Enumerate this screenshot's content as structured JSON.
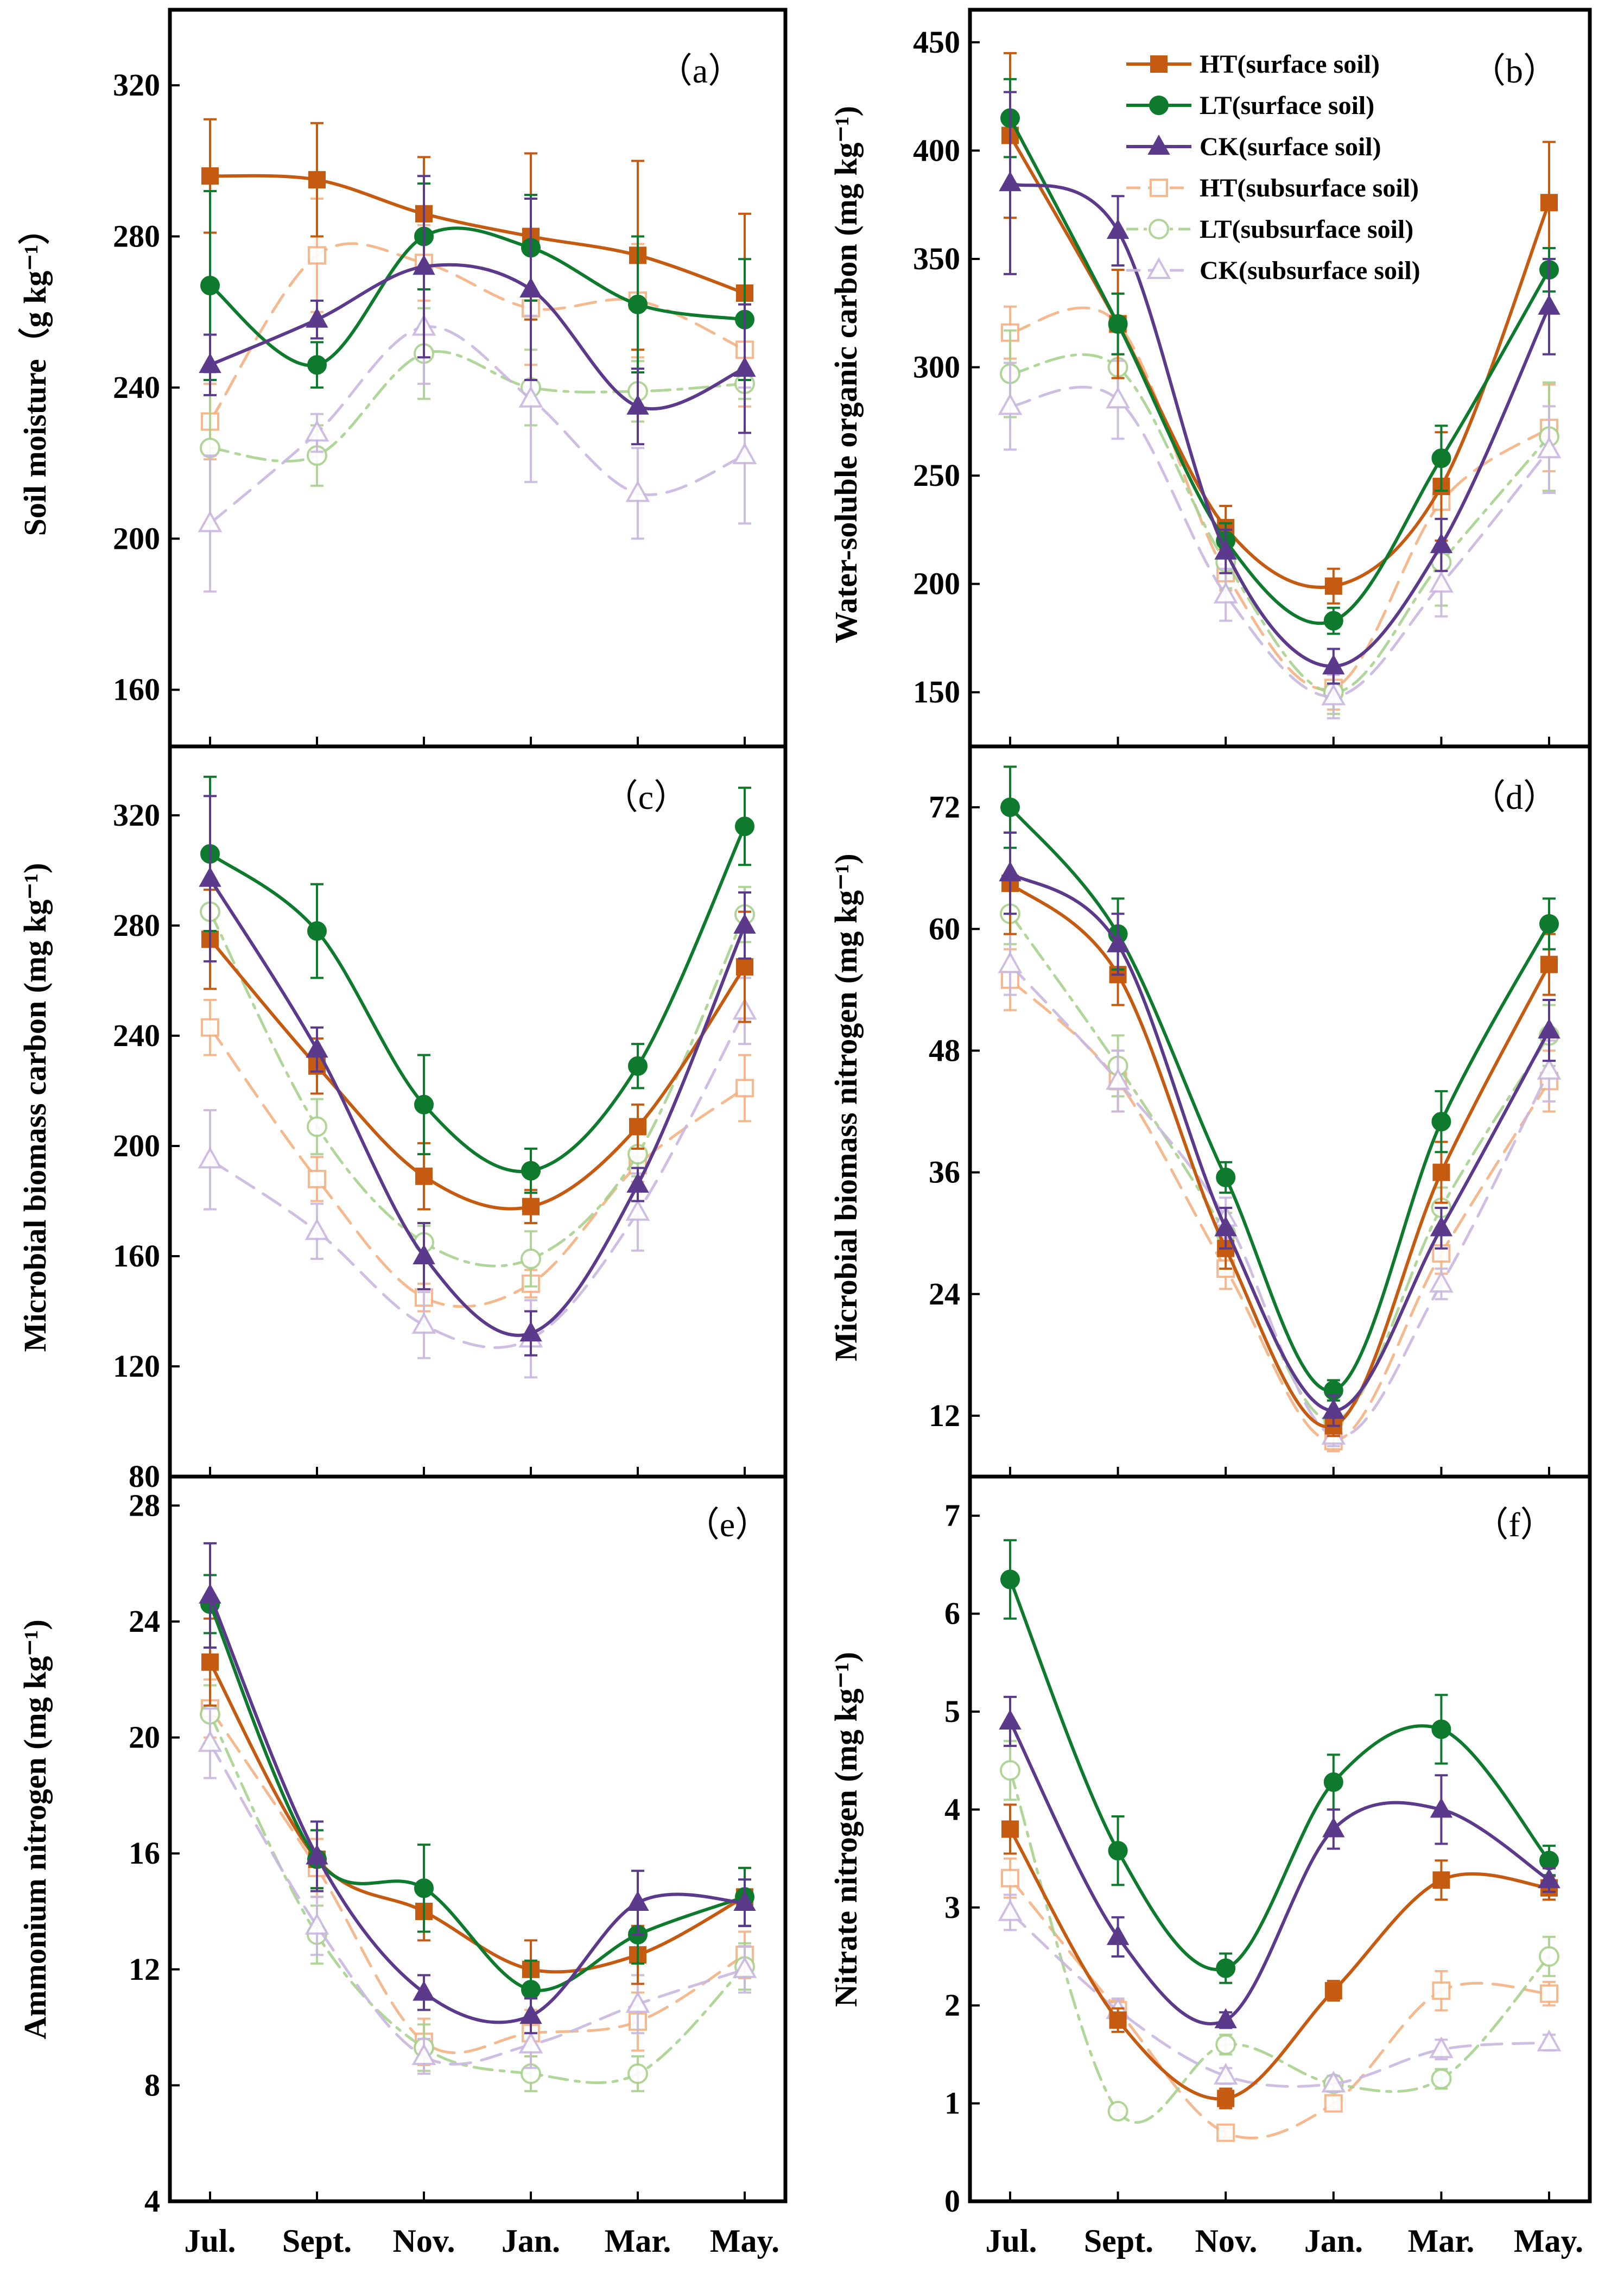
{
  "chart_data": {
    "type": "line",
    "categories": [
      "Jul.",
      "Sept.",
      "Nov.",
      "Jan.",
      "Mar.",
      "May."
    ],
    "series_styles": [
      {
        "name": "HT(surface soil)",
        "color": "#C55A11",
        "marker": "square",
        "filled": true,
        "dash": "solid",
        "opacity": 1
      },
      {
        "name": "LT(surface soil)",
        "color": "#0E7A2D",
        "marker": "circle",
        "filled": true,
        "dash": "solid",
        "opacity": 1
      },
      {
        "name": "CK(surface soil)",
        "color": "#5B3A8C",
        "marker": "triangle",
        "filled": true,
        "dash": "solid",
        "opacity": 1
      },
      {
        "name": "HT(subsurface soil)",
        "color": "#F4B183",
        "marker": "square",
        "filled": false,
        "dash": "dash",
        "opacity": 0.9
      },
      {
        "name": "LT(subsurface soil)",
        "color": "#A9D18E",
        "marker": "circle",
        "filled": false,
        "dash": "dashdot",
        "opacity": 0.9
      },
      {
        "name": "CK(subsurface soil)",
        "color": "#C9B8DF",
        "marker": "triangle",
        "filled": false,
        "dash": "dash",
        "opacity": 0.9
      }
    ],
    "legend": {
      "placement": "top-right of panel (b)",
      "entries": [
        "HT(surface soil)",
        "LT(surface soil)",
        "CK(surface soil)",
        "HT(subsurface soil)",
        "LT(subsurface soil)",
        "CK(subsurface soil)"
      ]
    },
    "panels": [
      {
        "tag": "（a）",
        "ylabel": "Soil moisture（g kg⁻¹）",
        "ylim": [
          145,
          340
        ],
        "yticks": [
          160,
          200,
          240,
          280,
          320
        ],
        "series": [
          {
            "name": "HT(surface soil)",
            "values": [
              296,
              295,
              286,
              280,
              275,
              265
            ],
            "errors": [
              15,
              15,
              15,
              22,
              25,
              21
            ]
          },
          {
            "name": "LT(surface soil)",
            "values": [
              267,
              246,
              280,
              277,
              262,
              258
            ],
            "errors": [
              25,
              6,
              14,
              14,
              18,
              16
            ]
          },
          {
            "name": "CK(surface soil)",
            "values": [
              246,
              258,
              272,
              266,
              235,
              245
            ],
            "errors": [
              8,
              5,
              24,
              24,
              10,
              17
            ]
          },
          {
            "name": "HT(subsurface soil)",
            "values": [
              231,
              275,
              273,
              261,
              263,
              250
            ],
            "errors": [
              10,
              15,
              10,
              15,
              15,
              15
            ]
          },
          {
            "name": "LT(subsurface soil)",
            "values": [
              224,
              222,
              249,
              240,
              239,
              241
            ],
            "errors": [
              20,
              8,
              12,
              10,
              8,
              4
            ]
          },
          {
            "name": "CK(subsurface soil)",
            "values": [
              204,
              228,
              256,
              237,
              212,
              222
            ],
            "errors": [
              18,
              5,
              15,
              22,
              12,
              18
            ]
          }
        ]
      },
      {
        "tag": "（b）",
        "ylabel": "Water-soluble organic carbon (mg kg⁻¹)",
        "ylim": [
          125,
          465
        ],
        "yticks": [
          150,
          200,
          250,
          300,
          350,
          400,
          450
        ],
        "series": [
          {
            "name": "HT(surface soil)",
            "values": [
              407,
              320,
              226,
              199,
              245,
              376
            ],
            "errors": [
              38,
              25,
              10,
              8,
              25,
              28
            ]
          },
          {
            "name": "LT(surface soil)",
            "values": [
              415,
              320,
              220,
              183,
              258,
              345
            ],
            "errors": [
              18,
              14,
              8,
              6,
              15,
              10
            ]
          },
          {
            "name": "CK(surface soil)",
            "values": [
              385,
              363,
              215,
              162,
              218,
              328
            ],
            "errors": [
              42,
              16,
              10,
              8,
              12,
              22
            ]
          },
          {
            "name": "HT(subsurface soil)",
            "values": [
              316,
              320,
              205,
              152,
              238,
              272
            ],
            "errors": [
              12,
              14,
              8,
              10,
              20,
              20
            ]
          },
          {
            "name": "LT(subsurface soil)",
            "values": [
              297,
              300,
              210,
              150,
              210,
              268
            ],
            "errors": [
              20,
              18,
              12,
              10,
              20,
              25
            ]
          },
          {
            "name": "CK(subsurface soil)",
            "values": [
              282,
              285,
              195,
              148,
              200,
              262
            ],
            "errors": [
              20,
              18,
              12,
              10,
              15,
              20
            ]
          }
        ]
      },
      {
        "tag": "（c）",
        "ylabel": "Microbial biomass carbon (mg kg⁻¹)",
        "ylim": [
          80,
          345
        ],
        "yticks": [
          80,
          120,
          160,
          200,
          240,
          280,
          320
        ],
        "series": [
          {
            "name": "HT(surface soil)",
            "values": [
              275,
              229,
              189,
              178,
              207,
              265
            ],
            "errors": [
              18,
              10,
              12,
              6,
              8,
              20
            ]
          },
          {
            "name": "LT(surface soil)",
            "values": [
              306,
              278,
              215,
              191,
              229,
              316
            ],
            "errors": [
              28,
              17,
              18,
              8,
              8,
              14
            ]
          },
          {
            "name": "CK(surface soil)",
            "values": [
              297,
              235,
              160,
              132,
              186,
              280
            ],
            "errors": [
              30,
              8,
              12,
              8,
              6,
              12
            ]
          },
          {
            "name": "HT(subsurface soil)",
            "values": [
              243,
              188,
              145,
              150,
              193,
              221
            ],
            "errors": [
              10,
              8,
              5,
              5,
              6,
              12
            ]
          },
          {
            "name": "LT(subsurface soil)",
            "values": [
              285,
              207,
              165,
              159,
              197,
              284
            ],
            "errors": [
              10,
              10,
              6,
              10,
              8,
              10
            ]
          },
          {
            "name": "CK(subsurface soil)",
            "values": [
              195,
              169,
              135,
              130,
              176,
              249
            ],
            "errors": [
              18,
              10,
              12,
              14,
              14,
              12
            ]
          }
        ]
      },
      {
        "tag": "（d）",
        "ylabel": "Microbial biomass nitrogen (mg kg⁻¹)",
        "ylim": [
          6,
          78
        ],
        "yticks": [
          12,
          24,
          36,
          48,
          60,
          72
        ],
        "series": [
          {
            "name": "HT(surface soil)",
            "values": [
              64.5,
              55.5,
              28.5,
              11,
              36,
              56.5
            ],
            "errors": [
              5,
              3,
              2,
              1,
              3,
              3
            ]
          },
          {
            "name": "LT(surface soil)",
            "values": [
              72,
              59.5,
              35.5,
              14.5,
              41,
              60.5
            ],
            "errors": [
              4,
              3.5,
              1.5,
              1,
              3,
              2.5
            ]
          },
          {
            "name": "CK(surface soil)",
            "values": [
              65.5,
              58.5,
              30.5,
              12.5,
              30.5,
              50
            ],
            "errors": [
              4,
              3,
              2,
              1.5,
              2,
              3
            ]
          },
          {
            "name": "HT(subsurface soil)",
            "values": [
              55,
              45,
              26.5,
              9.5,
              28,
              45
            ],
            "errors": [
              3,
              3,
              2,
              1,
              2,
              3
            ]
          },
          {
            "name": "LT(subsurface soil)",
            "values": [
              61.5,
              46.5,
              30,
              11.5,
              32.5,
              49.5
            ],
            "errors": [
              3,
              3,
              2,
              1,
              2,
              3
            ]
          },
          {
            "name": "CK(subsurface soil)",
            "values": [
              56.5,
              45,
              31.5,
              10,
              25,
              46
            ],
            "errors": [
              3,
              3,
              2,
              1,
              1.5,
              3
            ]
          }
        ]
      },
      {
        "tag": "（e）",
        "ylabel": "Ammonium nitrogen (mg kg⁻¹)",
        "ylim": [
          4,
          29
        ],
        "yticks": [
          4,
          8,
          12,
          16,
          20,
          24,
          28
        ],
        "series": [
          {
            "name": "HT(surface soil)",
            "values": [
              22.6,
              15.8,
              14,
              12,
              12.5,
              14.5
            ],
            "errors": [
              1.5,
              1,
              1,
              1,
              1,
              1
            ]
          },
          {
            "name": "LT(surface soil)",
            "values": [
              24.6,
              15.8,
              14.8,
              11.3,
              13.2,
              14.5
            ],
            "errors": [
              1,
              1,
              1.5,
              1,
              1,
              1
            ]
          },
          {
            "name": "CK(surface soil)",
            "values": [
              24.9,
              15.9,
              11.2,
              10.4,
              14.3,
              14.3
            ],
            "errors": [
              1.8,
              1.2,
              0.6,
              0.6,
              1.1,
              0.8
            ]
          },
          {
            "name": "HT(subsurface soil)",
            "values": [
              21,
              15.5,
              9.5,
              9.8,
              10.2,
              12.5
            ],
            "errors": [
              1,
              1,
              0.8,
              0.8,
              1,
              0.8
            ]
          },
          {
            "name": "LT(subsurface soil)",
            "values": [
              20.8,
              13.2,
              9.3,
              8.4,
              8.4,
              12.1
            ],
            "errors": [
              1,
              1,
              0.8,
              0.6,
              0.6,
              0.8
            ]
          },
          {
            "name": "CK(subsurface soil)",
            "values": [
              19.8,
              13.5,
              9,
              9.4,
              10.8,
              12
            ],
            "errors": [
              1.2,
              1,
              0.6,
              0.8,
              1,
              0.8
            ]
          }
        ]
      },
      {
        "tag": "（f）",
        "ylabel": "Nitrate nitrogen (mg kg⁻¹)",
        "ylim": [
          0,
          7.4
        ],
        "yticks": [
          0,
          1,
          2,
          3,
          4,
          5,
          6,
          7
        ],
        "series": [
          {
            "name": "HT(surface soil)",
            "values": [
              3.8,
              1.85,
              1.05,
              2.15,
              3.28,
              3.2
            ],
            "errors": [
              0.25,
              0.12,
              0.1,
              0.1,
              0.2,
              0.12
            ]
          },
          {
            "name": "LT(surface soil)",
            "values": [
              6.35,
              3.58,
              2.38,
              4.28,
              4.82,
              3.48
            ],
            "errors": [
              0.4,
              0.35,
              0.15,
              0.28,
              0.35,
              0.15
            ]
          },
          {
            "name": "CK(surface soil)",
            "values": [
              4.9,
              2.7,
              1.85,
              3.8,
              4.0,
              3.28
            ],
            "errors": [
              0.25,
              0.2,
              0.08,
              0.2,
              0.35,
              0.12
            ]
          },
          {
            "name": "HT(subsurface soil)",
            "values": [
              3.3,
              1.95,
              0.7,
              1.0,
              2.15,
              2.12
            ],
            "errors": [
              0.2,
              0.1,
              0.05,
              0.06,
              0.2,
              0.12
            ]
          },
          {
            "name": "LT(subsurface soil)",
            "values": [
              4.4,
              0.92,
              1.6,
              1.2,
              1.25,
              2.5
            ],
            "errors": [
              0.3,
              0.05,
              0.1,
              0.08,
              0.1,
              0.2
            ]
          },
          {
            "name": "CK(subsurface soil)",
            "values": [
              2.95,
              1.95,
              1.28,
              1.2,
              1.55,
              1.62
            ],
            "errors": [
              0.18,
              0.12,
              0.08,
              0.08,
              0.1,
              0.08
            ]
          }
        ]
      }
    ]
  }
}
